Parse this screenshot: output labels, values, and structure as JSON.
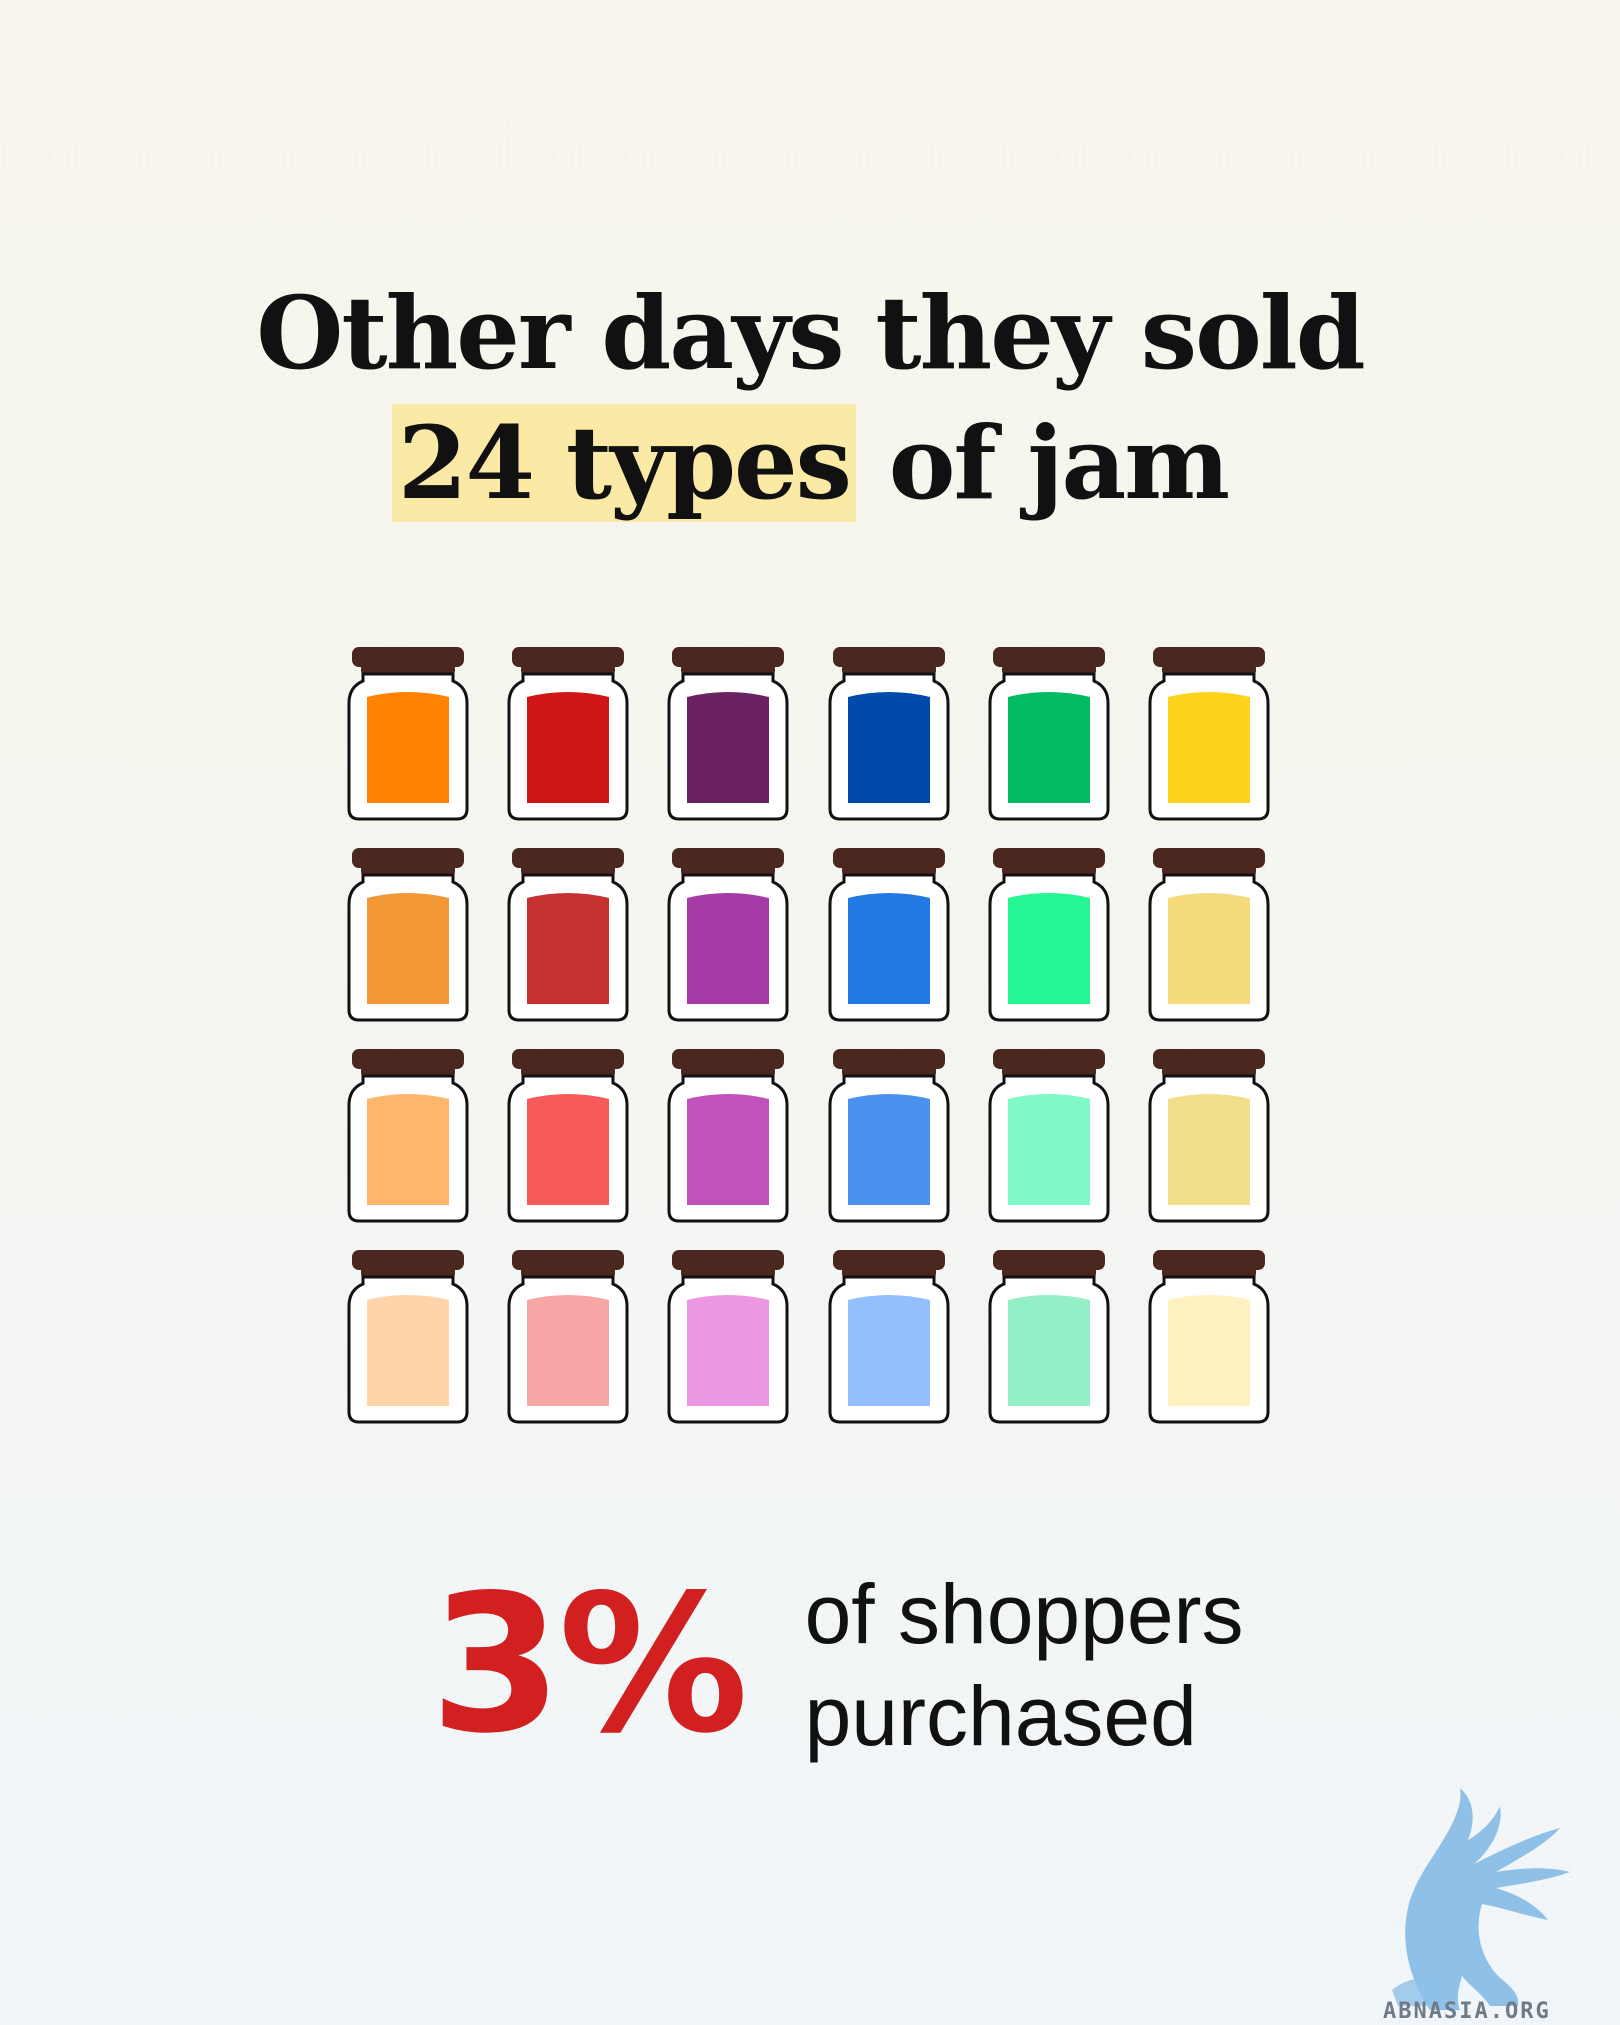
{
  "title": {
    "line1": "Other days they sold",
    "highlight": "24 types",
    "line2_rest": " of jam"
  },
  "jars": {
    "lid_color": "#4a2820",
    "columns": 6,
    "rows": 4,
    "colors": [
      "#ff8200",
      "#d01515",
      "#6b2262",
      "#004aab",
      "#00bb62",
      "#ffd21c",
      "#f39837",
      "#c33131",
      "#a73ba5",
      "#2279e3",
      "#26f593",
      "#f5db7b",
      "#ffb66a",
      "#f75858",
      "#c351bb",
      "#4b91ee",
      "#7ff9c5",
      "#f2df8c",
      "#ffd4a9",
      "#f7a6a6",
      "#ec97e2",
      "#93bfff",
      "#95efc6",
      "#fff2be"
    ]
  },
  "stat": {
    "value": "3%",
    "text_line1": "of shoppers",
    "text_line2": "purchased",
    "color": "#d21f1f"
  },
  "logo": {
    "icon": "griffin-icon",
    "text": "ABNASIA.ORG",
    "color": "#8ec0e8"
  }
}
